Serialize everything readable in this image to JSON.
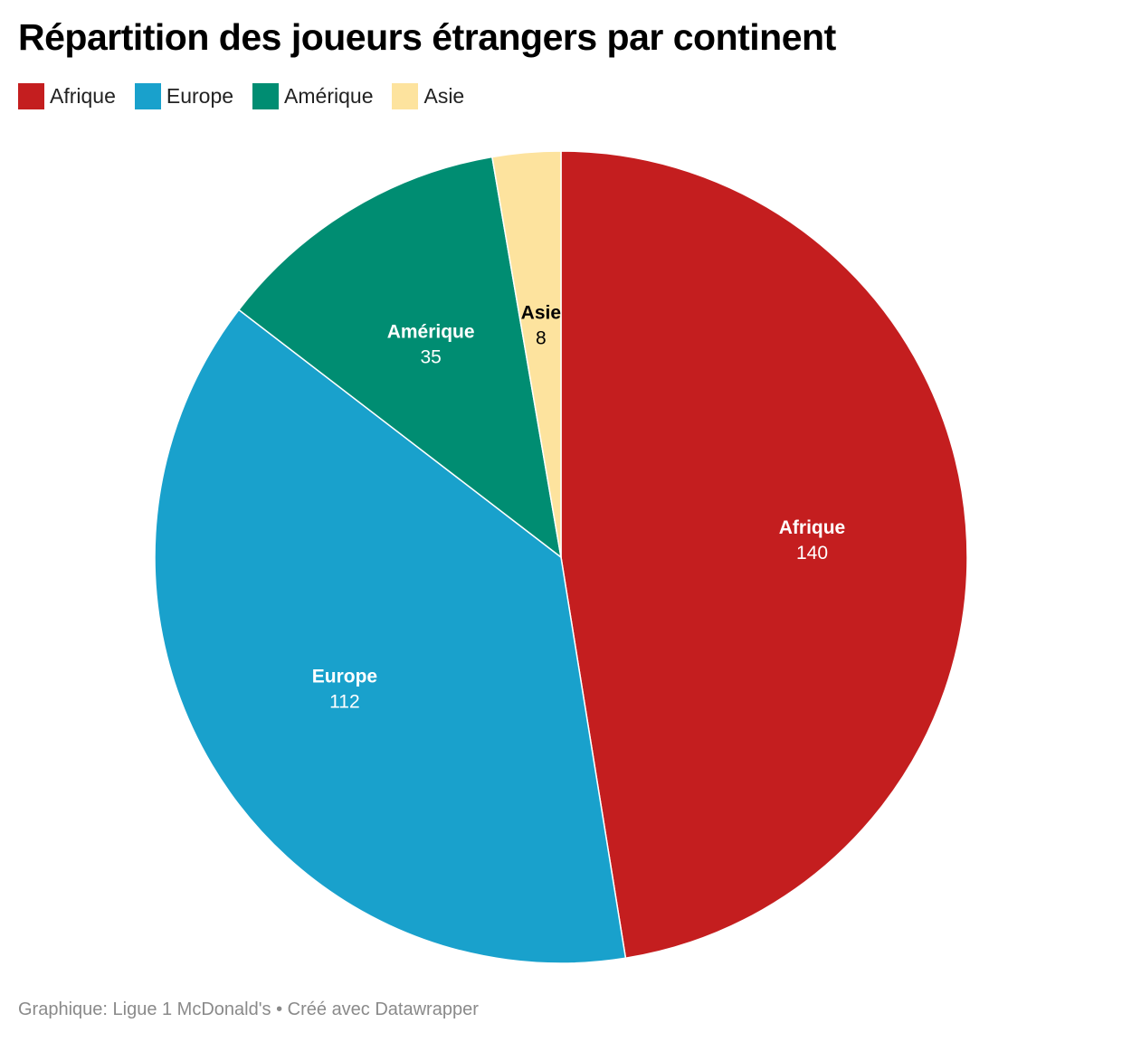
{
  "chart_data": {
    "type": "pie",
    "title": "Répartition des joueurs étrangers par continent",
    "categories": [
      "Afrique",
      "Europe",
      "Amérique",
      "Asie"
    ],
    "values": [
      140,
      112,
      35,
      8
    ],
    "colors": [
      "#c41e1f",
      "#19a1cc",
      "#008d72",
      "#fde39e"
    ],
    "label_colors": [
      "#ffffff",
      "#ffffff",
      "#ffffff",
      "#000000"
    ],
    "legend_position": "top-left",
    "start": "top",
    "direction": "clockwise"
  },
  "legend": [
    {
      "label": "Afrique",
      "color": "#c41e1f"
    },
    {
      "label": "Europe",
      "color": "#19a1cc"
    },
    {
      "label": "Amérique",
      "color": "#008d72"
    },
    {
      "label": "Asie",
      "color": "#fde39e"
    }
  ],
  "footer": "Graphique: Ligue 1 McDonald's • Créé avec Datawrapper"
}
